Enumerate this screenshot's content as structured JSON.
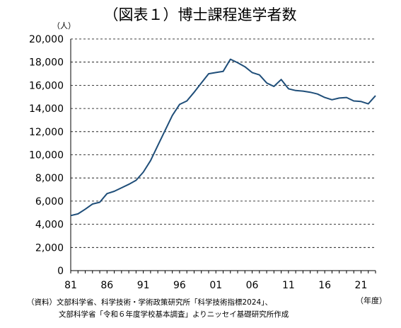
{
  "chart_data": {
    "type": "line",
    "title": "（図表１）博士課程進学者数",
    "ylabel": "（人）",
    "xlabel": "（年度）",
    "ylim": [
      0,
      20000
    ],
    "yticks": [
      "0",
      "2,000",
      "4,000",
      "6,000",
      "8,000",
      "10,000",
      "12,000",
      "14,000",
      "16,000",
      "18,000",
      "20,000"
    ],
    "xtick_labels": [
      "81",
      "86",
      "91",
      "96",
      "01",
      "06",
      "11",
      "16",
      "21"
    ],
    "grid": "horizontal-dashed",
    "line_color": "#1f4e79",
    "x": [
      1981,
      1982,
      1983,
      1984,
      1985,
      1986,
      1987,
      1988,
      1989,
      1990,
      1991,
      1992,
      1993,
      1994,
      1995,
      1996,
      1997,
      1998,
      1999,
      2000,
      2001,
      2002,
      2003,
      2004,
      2005,
      2006,
      2007,
      2008,
      2009,
      2010,
      2011,
      2012,
      2013,
      2014,
      2015,
      2016,
      2017,
      2018,
      2019,
      2020,
      2021,
      2022,
      2023
    ],
    "series": [
      {
        "values": [
          4750,
          4900,
          5300,
          5750,
          5900,
          6650,
          6850,
          7150,
          7450,
          7800,
          8500,
          9500,
          10800,
          12100,
          13400,
          14350,
          14650,
          15400,
          16200,
          17000,
          17100,
          17200,
          18250,
          17950,
          17600,
          17100,
          16900,
          16200,
          15900,
          16500,
          15700,
          15550,
          15500,
          15400,
          15250,
          14950,
          14750,
          14900,
          14950,
          14650,
          14600,
          14400,
          15100
        ]
      }
    ]
  },
  "source_notes": [
    "（資料）文部科学省、科学技術・学術政策研究所「科学技術指標2024」、",
    "文部科学省「令和６年度学校基本調査」よりニッセイ基礎研究所作成"
  ]
}
